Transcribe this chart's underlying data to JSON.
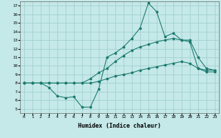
{
  "xlabel": "Humidex (Indice chaleur)",
  "bg_color": "#c5e8e8",
  "grid_color": "#a0cfcf",
  "line_color": "#1a7a6e",
  "xlim": [
    -0.5,
    23.5
  ],
  "ylim": [
    4.5,
    17.5
  ],
  "xticks": [
    0,
    1,
    2,
    3,
    4,
    5,
    6,
    7,
    8,
    9,
    10,
    11,
    12,
    13,
    14,
    15,
    16,
    17,
    18,
    19,
    20,
    21,
    22,
    23
  ],
  "yticks": [
    5,
    6,
    7,
    8,
    9,
    10,
    11,
    12,
    13,
    14,
    15,
    16,
    17
  ],
  "line1_x": [
    0,
    1,
    2,
    3,
    4,
    5,
    6,
    7,
    8,
    9,
    10,
    11,
    12,
    13,
    14,
    15,
    16,
    17,
    18,
    19,
    20,
    21,
    22,
    23
  ],
  "line1_y": [
    8.0,
    8.0,
    8.0,
    7.5,
    6.5,
    6.3,
    6.4,
    5.2,
    5.2,
    7.3,
    11.0,
    11.5,
    12.2,
    13.2,
    14.4,
    17.3,
    16.3,
    13.4,
    13.8,
    13.0,
    13.0,
    11.0,
    9.7,
    9.5
  ],
  "line2_x": [
    0,
    1,
    2,
    3,
    4,
    5,
    6,
    7,
    8,
    9,
    10,
    11,
    12,
    13,
    14,
    15,
    16,
    17,
    18,
    19,
    20,
    21,
    22,
    23
  ],
  "line2_y": [
    8.0,
    8.0,
    8.0,
    8.0,
    8.0,
    8.0,
    8.0,
    8.0,
    8.5,
    9.2,
    9.7,
    10.5,
    11.2,
    11.8,
    12.2,
    12.5,
    12.8,
    13.0,
    13.2,
    13.0,
    12.8,
    9.7,
    9.5,
    9.5
  ],
  "line3_x": [
    0,
    1,
    2,
    3,
    4,
    5,
    6,
    7,
    8,
    9,
    10,
    11,
    12,
    13,
    14,
    15,
    16,
    17,
    18,
    19,
    20,
    21,
    22,
    23
  ],
  "line3_y": [
    8.0,
    8.0,
    8.0,
    8.0,
    8.0,
    8.0,
    8.0,
    8.0,
    8.0,
    8.2,
    8.5,
    8.8,
    9.0,
    9.2,
    9.5,
    9.7,
    9.9,
    10.1,
    10.3,
    10.5,
    10.3,
    9.7,
    9.3,
    9.3
  ],
  "xlabel_fontsize": 6,
  "tick_fontsize": 4.5,
  "line_width": 0.8,
  "marker_size": 1.8
}
